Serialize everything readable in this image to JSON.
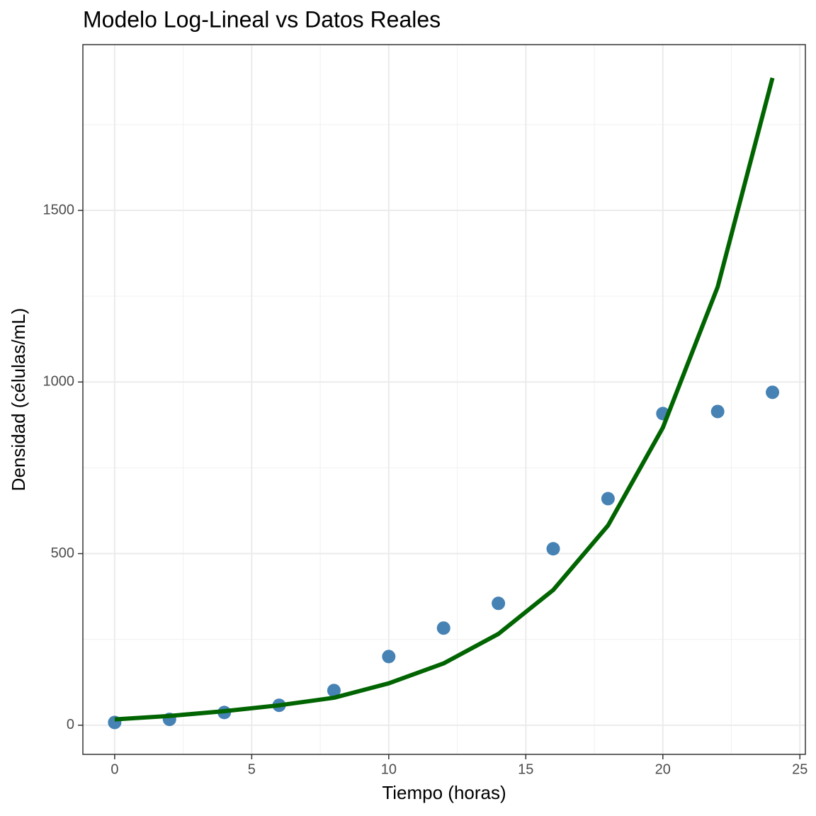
{
  "chart_data": {
    "type": "scatter",
    "title": "Modelo Log-Lineal vs Datos Reales",
    "x_label": "Tiempo (horas)",
    "y_label": "Densidad (células/mL)",
    "x": [
      0,
      2,
      4,
      6,
      8,
      10,
      12,
      14,
      16,
      18,
      20,
      22,
      24
    ],
    "series": [
      {
        "type": "scatter",
        "color": "#4682b4",
        "values": [
          8,
          17,
          37,
          58,
          101,
          200,
          283,
          355,
          514,
          660,
          908,
          914,
          970
        ]
      },
      {
        "type": "line",
        "color": "#006400",
        "values": [
          17,
          27,
          41,
          58,
          80,
          122,
          180,
          266,
          394,
          582,
          867,
          1277,
          1886
        ]
      }
    ],
    "xlim": [
      -1.16,
      25.2
    ],
    "ylim": [
      -85,
      1983
    ],
    "xticks": [
      0,
      5,
      10,
      15,
      20,
      25
    ],
    "yticks": [
      0,
      500,
      1000,
      1500
    ],
    "grid": true
  }
}
